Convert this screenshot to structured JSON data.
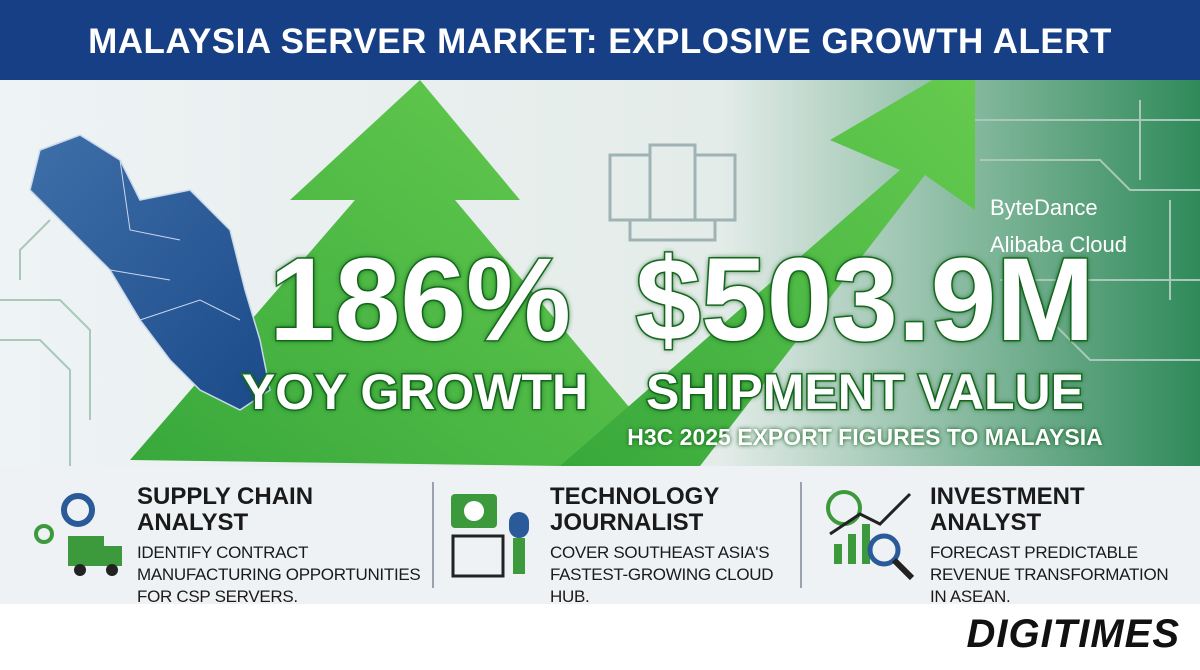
{
  "header": {
    "title": "MALAYSIA SERVER MARKET: EXPLOSIVE GROWTH ALERT"
  },
  "stats": [
    {
      "value": "186%",
      "label": "YOY GROWTH"
    },
    {
      "value": "$503.9M",
      "label": "SHIPMENT VALUE"
    }
  ],
  "source": "H3C 2025 EXPORT FIGURES TO MALAYSIA",
  "logos": [
    "ByteDance",
    "Alibaba Cloud"
  ],
  "audiences": [
    {
      "title": "SUPPLY CHAIN ANALYST",
      "description": "IDENTIFY CONTRACT MANUFACTURING OPPORTUNITIES FOR CSP SERVERS."
    },
    {
      "title": "TECHNOLOGY JOURNALIST",
      "description": "COVER SOUTHEAST ASIA'S FASTEST-GROWING CLOUD HUB."
    },
    {
      "title": "INVESTMENT ANALYST",
      "description": "FORECAST PREDICTABLE REVENUE TRANSFORMATION IN ASEAN."
    }
  ],
  "brand": "DIGITIMES"
}
